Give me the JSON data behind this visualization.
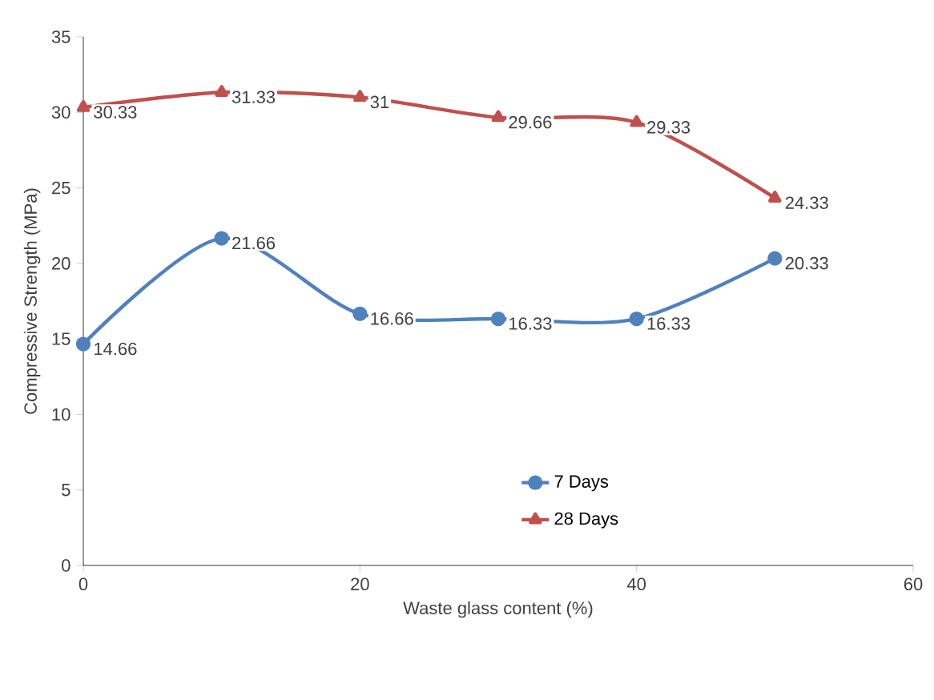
{
  "chart_data": {
    "type": "line",
    "xlabel": "Waste glass content (%)",
    "ylabel": "Compressive Strength (MPa)",
    "x": [
      0,
      10,
      20,
      30,
      40,
      50
    ],
    "xlim": [
      0,
      60
    ],
    "xticks": [
      0,
      20,
      40,
      60
    ],
    "ylim": [
      0,
      35
    ],
    "yticks": [
      0,
      5,
      10,
      15,
      20,
      25,
      30,
      35
    ],
    "legend": "bottom right",
    "grid": false,
    "series": [
      {
        "name": "7 Days",
        "color": "#4f81bd",
        "marker": "circle",
        "values": [
          14.66,
          21.66,
          16.66,
          16.33,
          16.33,
          20.33
        ],
        "value_labels": [
          "14.66",
          "21.66",
          "16.66",
          "16.33",
          "16.33",
          "20.33"
        ]
      },
      {
        "name": "28 Days",
        "color": "#c0504d",
        "marker": "triangle",
        "values": [
          30.33,
          31.33,
          31,
          29.66,
          29.33,
          24.33
        ],
        "value_labels": [
          "30.33",
          "31.33",
          "31",
          "29.66",
          "29.33",
          "24.33"
        ]
      }
    ]
  }
}
